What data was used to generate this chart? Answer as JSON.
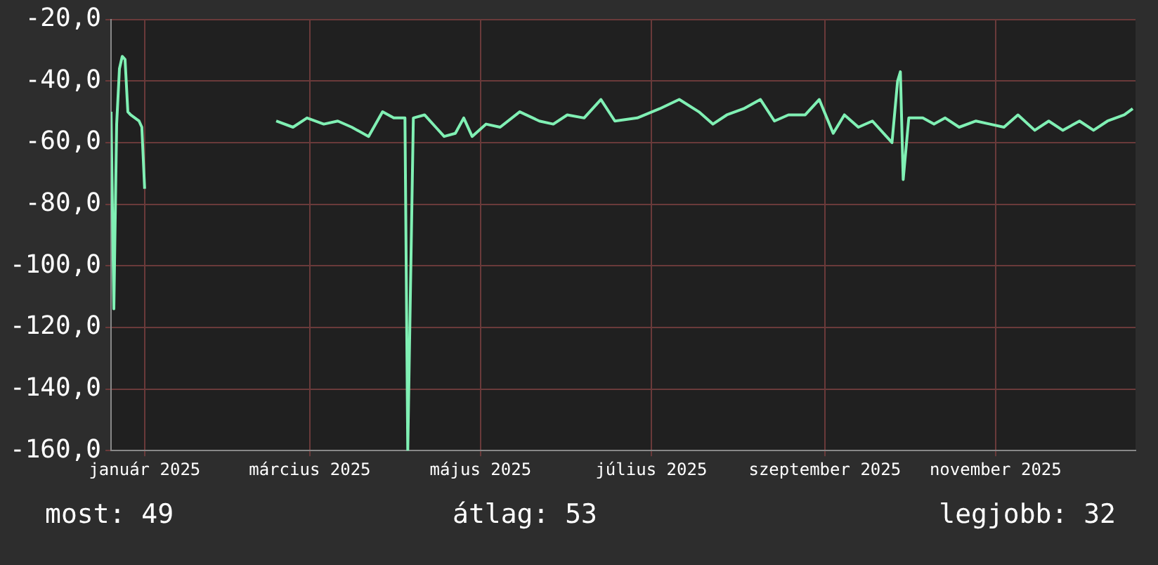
{
  "chart_data": {
    "type": "line",
    "x": [
      "2024-12-20",
      "2024-12-21",
      "2024-12-22",
      "2024-12-23",
      "2024-12-24",
      "2024-12-25",
      "2024-12-26",
      "2024-12-27",
      "2024-12-30",
      "2024-12-31",
      "2025-01-01",
      "2025-01-20",
      "2025-02-17",
      "2025-02-23",
      "2025-02-28",
      "2025-03-06",
      "2025-03-11",
      "2025-03-16",
      "2025-03-22",
      "2025-03-27",
      "2025-03-31",
      "2025-04-04",
      "2025-04-05",
      "2025-04-07",
      "2025-04-11",
      "2025-04-15",
      "2025-04-18",
      "2025-04-22",
      "2025-04-25",
      "2025-04-28",
      "2025-05-03",
      "2025-05-08",
      "2025-05-15",
      "2025-05-22",
      "2025-05-27",
      "2025-06-01",
      "2025-06-07",
      "2025-06-13",
      "2025-06-18",
      "2025-06-26",
      "2025-07-04",
      "2025-07-11",
      "2025-07-18",
      "2025-07-23",
      "2025-07-28",
      "2025-08-03",
      "2025-08-09",
      "2025-08-14",
      "2025-08-19",
      "2025-08-25",
      "2025-08-30",
      "2025-09-04",
      "2025-09-08",
      "2025-09-13",
      "2025-09-18",
      "2025-09-23",
      "2025-09-25",
      "2025-09-27",
      "2025-09-28",
      "2025-09-29",
      "2025-10-01",
      "2025-10-06",
      "2025-10-10",
      "2025-10-14",
      "2025-10-19",
      "2025-10-25",
      "2025-10-30",
      "2025-11-04",
      "2025-11-09",
      "2025-11-15",
      "2025-11-20",
      "2025-11-25",
      "2025-12-01",
      "2025-12-06",
      "2025-12-11",
      "2025-12-17",
      "2025-12-20"
    ],
    "series": [
      {
        "color": "#80f0b4",
        "values": [
          -50,
          -114,
          -54,
          -36,
          -32,
          -33,
          -50,
          -51,
          -53,
          -55,
          -75,
          null,
          -53,
          -55,
          -52,
          -54,
          -53,
          -55,
          -58,
          -50,
          -52,
          -52,
          -160,
          -52,
          -51,
          -55,
          -58,
          -57,
          -52,
          -58,
          -54,
          -55,
          -50,
          -53,
          -54,
          -51,
          -52,
          -46,
          -53,
          -52,
          -49,
          -46,
          -50,
          -54,
          -51,
          -49,
          -46,
          -53,
          -51,
          -51,
          -46,
          -57,
          -51,
          -55,
          -53,
          -58,
          -60,
          -40,
          -37,
          -72,
          -52,
          -52,
          -54,
          -52,
          -55,
          -53,
          -54,
          -55,
          -51,
          -56,
          -53,
          -56,
          -53,
          -56,
          -53,
          -51,
          -49
        ]
      }
    ],
    "xlim": [
      "2024-12-20",
      "2025-12-21"
    ],
    "xticks": [
      {
        "value": "2025-01-01",
        "label": "január 2025"
      },
      {
        "value": "2025-03-01",
        "label": "március 2025"
      },
      {
        "value": "2025-05-01",
        "label": "május 2025"
      },
      {
        "value": "2025-07-01",
        "label": "július 2025"
      },
      {
        "value": "2025-09-01",
        "label": "szeptember 2025"
      },
      {
        "value": "2025-11-01",
        "label": "november 2025"
      }
    ],
    "ylim": [
      -160,
      -20
    ],
    "yticks": [
      {
        "value": -160,
        "label": "-160,0"
      },
      {
        "value": -140,
        "label": "-140,0"
      },
      {
        "value": -120,
        "label": "-120,0"
      },
      {
        "value": -100,
        "label": "-100,0"
      },
      {
        "value": -80,
        "label": "-80,0"
      },
      {
        "value": -60,
        "label": "-60,0"
      },
      {
        "value": -40,
        "label": "-40,0"
      },
      {
        "value": -20,
        "label": "-20,0"
      }
    ],
    "grid": true,
    "legend": false,
    "marker": "none",
    "line_style": "solid",
    "annotations": [
      "most: 49",
      "átlag: 53",
      "legjobb: 32"
    ]
  }
}
